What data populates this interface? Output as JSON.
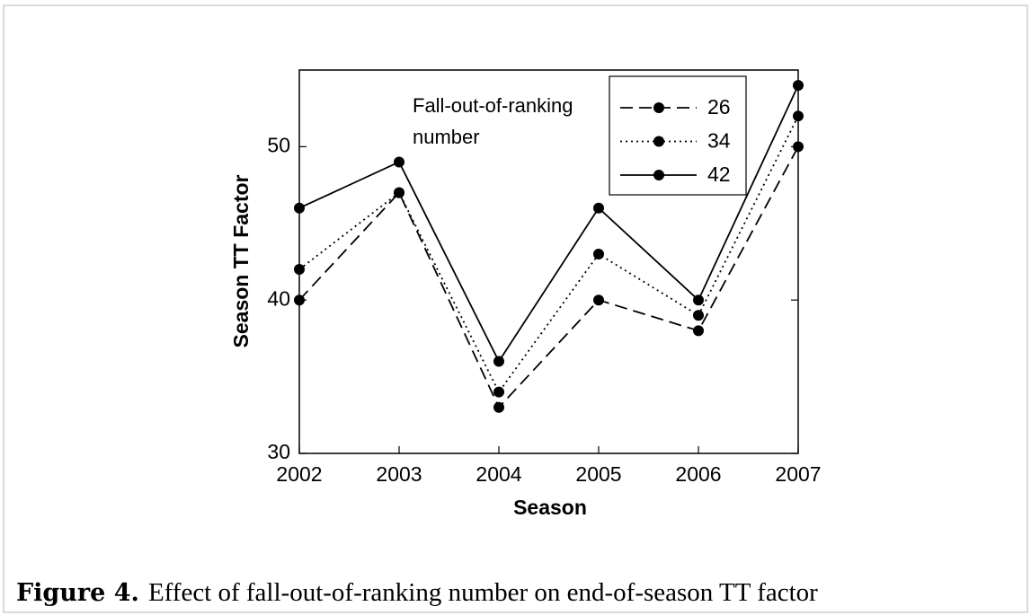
{
  "chart_data": {
    "type": "line",
    "x": [
      2002,
      2003,
      2004,
      2005,
      2006,
      2007
    ],
    "xlim": [
      2002,
      2007
    ],
    "xticks": [
      2002,
      2003,
      2004,
      2005,
      2006,
      2007
    ],
    "ylim": [
      30,
      55
    ],
    "yticks": [
      30,
      40,
      50
    ],
    "xlabel": "Season",
    "ylabel": "Season TT Factor",
    "legend_title": "Fall-out-of-ranking number",
    "grid": false,
    "series": [
      {
        "name": "26",
        "color": "#000000",
        "line_style": "dashed",
        "values": [
          40,
          47,
          33,
          40,
          38,
          50
        ]
      },
      {
        "name": "34",
        "color": "#000000",
        "line_style": "dotted",
        "values": [
          42,
          47,
          34,
          43,
          39,
          52
        ]
      },
      {
        "name": "42",
        "color": "#000000",
        "line_style": "solid",
        "values": [
          46,
          49,
          36,
          46,
          40,
          54
        ]
      }
    ]
  },
  "caption": {
    "label": "Figure 4.",
    "text": "Effect of fall-out-of-ranking number on end-of-season TT factor"
  }
}
